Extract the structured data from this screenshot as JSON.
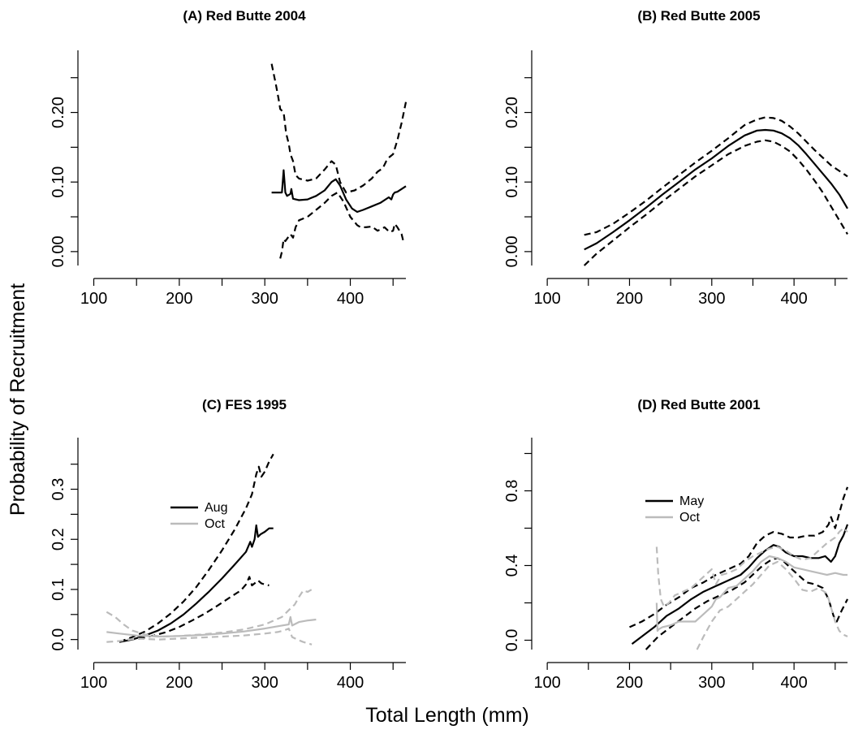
{
  "figure": {
    "ylabel": "Probability of Recruitment",
    "xlabel": "Total Length (mm)"
  },
  "colors": {
    "black": "#000000",
    "gray": "#bbbbbb"
  },
  "chart_data": [
    {
      "type": "line",
      "title": "(A) Red Butte 2004",
      "xlim": [
        90,
        465
      ],
      "xticks": [
        100,
        200,
        300,
        400
      ],
      "ylim": [
        -0.02,
        0.28
      ],
      "yticks": [
        0.0,
        0.1,
        0.2
      ],
      "yticklabels": [
        "0.00",
        "0.10",
        "0.20"
      ],
      "legend": [],
      "series": [
        {
          "color": "black",
          "dash": false,
          "x": [
            308,
            320,
            322,
            324,
            326,
            330,
            331,
            333,
            340,
            350,
            360,
            370,
            378,
            383,
            388,
            395,
            402,
            408,
            415,
            425,
            435,
            445,
            448,
            450,
            452,
            455,
            460,
            465
          ],
          "y": [
            0.085,
            0.085,
            0.117,
            0.085,
            0.08,
            0.083,
            0.09,
            0.076,
            0.074,
            0.075,
            0.08,
            0.088,
            0.1,
            0.104,
            0.095,
            0.075,
            0.062,
            0.057,
            0.06,
            0.065,
            0.07,
            0.078,
            0.075,
            0.082,
            0.085,
            0.086,
            0.09,
            0.094
          ]
        },
        {
          "color": "black",
          "dash": true,
          "x": [
            308,
            313,
            316,
            318,
            322,
            325,
            328,
            330,
            333,
            336,
            340,
            350,
            360,
            370,
            378,
            383,
            388,
            395,
            405,
            415,
            425,
            432,
            438,
            442,
            445,
            450,
            455,
            460,
            465
          ],
          "y": [
            0.27,
            0.24,
            0.22,
            0.205,
            0.2,
            0.17,
            0.155,
            0.14,
            0.13,
            0.11,
            0.105,
            0.102,
            0.105,
            0.118,
            0.13,
            0.125,
            0.1,
            0.085,
            0.088,
            0.095,
            0.105,
            0.115,
            0.12,
            0.13,
            0.135,
            0.14,
            0.16,
            0.185,
            0.215
          ]
        },
        {
          "color": "black",
          "dash": true,
          "x": [
            318,
            320,
            322,
            324,
            327,
            330,
            333,
            336,
            340,
            350,
            360,
            370,
            378,
            385,
            392,
            400,
            408,
            412,
            418,
            425,
            432,
            440,
            446,
            450,
            452,
            455,
            460,
            462
          ],
          "y": [
            -0.01,
            0.0,
            0.018,
            0.015,
            0.02,
            0.025,
            0.02,
            0.035,
            0.045,
            0.05,
            0.06,
            0.07,
            0.08,
            0.085,
            0.072,
            0.05,
            0.038,
            0.035,
            0.035,
            0.036,
            0.03,
            0.035,
            0.028,
            0.03,
            0.04,
            0.035,
            0.025,
            0.015
          ]
        }
      ]
    },
    {
      "type": "line",
      "title": "(B) Red Butte 2005",
      "xlim": [
        90,
        465
      ],
      "xticks": [
        100,
        200,
        300,
        400
      ],
      "ylim": [
        -0.02,
        0.28
      ],
      "yticks": [
        0.0,
        0.1,
        0.2
      ],
      "yticklabels": [
        "0.00",
        "0.10",
        "0.20"
      ],
      "legend": [],
      "series": [
        {
          "color": "black",
          "dash": false,
          "x": [
            145,
            160,
            180,
            200,
            220,
            240,
            260,
            280,
            300,
            320,
            340,
            355,
            365,
            375,
            385,
            395,
            405,
            415,
            425,
            435,
            445,
            455,
            465
          ],
          "y": [
            0.003,
            0.012,
            0.028,
            0.045,
            0.063,
            0.082,
            0.1,
            0.118,
            0.134,
            0.152,
            0.167,
            0.174,
            0.175,
            0.174,
            0.17,
            0.163,
            0.153,
            0.14,
            0.126,
            0.112,
            0.098,
            0.082,
            0.062
          ]
        },
        {
          "color": "black",
          "dash": true,
          "x": [
            145,
            160,
            180,
            200,
            220,
            240,
            260,
            280,
            300,
            320,
            340,
            355,
            365,
            375,
            385,
            395,
            405,
            415,
            425,
            435,
            445,
            455,
            465
          ],
          "y": [
            0.024,
            0.028,
            0.04,
            0.056,
            0.073,
            0.092,
            0.11,
            0.128,
            0.145,
            0.163,
            0.182,
            0.19,
            0.193,
            0.192,
            0.188,
            0.18,
            0.17,
            0.158,
            0.146,
            0.135,
            0.124,
            0.116,
            0.108
          ]
        },
        {
          "color": "black",
          "dash": true,
          "x": [
            145,
            160,
            180,
            200,
            220,
            240,
            260,
            280,
            300,
            320,
            340,
            355,
            365,
            375,
            385,
            395,
            405,
            415,
            425,
            435,
            445,
            455,
            465
          ],
          "y": [
            -0.02,
            -0.003,
            0.016,
            0.035,
            0.053,
            0.072,
            0.09,
            0.108,
            0.124,
            0.14,
            0.152,
            0.158,
            0.16,
            0.158,
            0.152,
            0.144,
            0.132,
            0.118,
            0.102,
            0.085,
            0.065,
            0.045,
            0.025
          ]
        }
      ]
    },
    {
      "type": "line",
      "title": "(C) FES 1995",
      "xlim": [
        90,
        465
      ],
      "xticks": [
        100,
        200,
        300,
        400
      ],
      "ylim": [
        -0.02,
        0.39
      ],
      "yticks": [
        0.0,
        0.1,
        0.2,
        0.3
      ],
      "yticklabels": [
        "0.0",
        "0.1",
        "0.2",
        "0.3"
      ],
      "legend": [
        {
          "label": "Aug",
          "color": "black"
        },
        {
          "label": "Oct",
          "color": "gray"
        }
      ],
      "series": [
        {
          "color": "black",
          "dash": false,
          "x": [
            130,
            145,
            160,
            175,
            190,
            205,
            220,
            235,
            250,
            265,
            278,
            283,
            285,
            288,
            290,
            292,
            295,
            300,
            305,
            310
          ],
          "y": [
            -0.005,
            0.0,
            0.008,
            0.018,
            0.032,
            0.05,
            0.072,
            0.096,
            0.122,
            0.15,
            0.175,
            0.195,
            0.185,
            0.2,
            0.228,
            0.205,
            0.21,
            0.215,
            0.222,
            0.222
          ]
        },
        {
          "color": "black",
          "dash": true,
          "x": [
            130,
            145,
            160,
            175,
            190,
            205,
            220,
            235,
            250,
            265,
            278,
            285,
            290,
            293,
            296,
            300,
            305,
            310
          ],
          "y": [
            -0.005,
            0.005,
            0.016,
            0.032,
            0.052,
            0.076,
            0.105,
            0.14,
            0.178,
            0.22,
            0.262,
            0.29,
            0.33,
            0.345,
            0.325,
            0.335,
            0.355,
            0.37
          ]
        },
        {
          "color": "black",
          "dash": true,
          "x": [
            140,
            155,
            170,
            185,
            200,
            215,
            230,
            245,
            260,
            272,
            278,
            282,
            285,
            288,
            292,
            296,
            300,
            305
          ],
          "y": [
            0.0,
            0.002,
            0.008,
            0.015,
            0.025,
            0.038,
            0.052,
            0.068,
            0.085,
            0.098,
            0.11,
            0.125,
            0.108,
            0.112,
            0.118,
            0.112,
            0.11,
            0.108
          ]
        },
        {
          "color": "gray",
          "dash": false,
          "x": [
            115,
            130,
            150,
            175,
            200,
            225,
            250,
            275,
            300,
            320,
            328,
            330,
            332,
            340,
            350,
            360
          ],
          "y": [
            0.015,
            0.012,
            0.008,
            0.006,
            0.007,
            0.009,
            0.012,
            0.016,
            0.022,
            0.028,
            0.03,
            0.045,
            0.028,
            0.035,
            0.038,
            0.04
          ]
        },
        {
          "color": "gray",
          "dash": true,
          "x": [
            115,
            125,
            135,
            145,
            160,
            180,
            200,
            225,
            250,
            275,
            300,
            320,
            330,
            335,
            340,
            345,
            350,
            355
          ],
          "y": [
            0.055,
            0.045,
            0.03,
            0.018,
            0.01,
            0.006,
            0.007,
            0.01,
            0.014,
            0.02,
            0.03,
            0.045,
            0.062,
            0.07,
            0.085,
            0.098,
            0.095,
            0.1
          ]
        },
        {
          "color": "gray",
          "dash": true,
          "x": [
            115,
            130,
            150,
            175,
            200,
            225,
            250,
            275,
            300,
            315,
            322,
            328,
            332,
            338,
            345,
            355
          ],
          "y": [
            -0.005,
            -0.003,
            0.002,
            0.0,
            0.002,
            0.004,
            0.006,
            0.008,
            0.012,
            0.015,
            0.018,
            0.022,
            0.005,
            0.0,
            -0.005,
            -0.01
          ]
        }
      ]
    },
    {
      "type": "line",
      "title": "(D) Red Butte 2001",
      "xlim": [
        90,
        465
      ],
      "xticks": [
        100,
        200,
        300,
        400
      ],
      "ylim": [
        -0.05,
        1.05
      ],
      "yticks": [
        0.0,
        0.4,
        0.8
      ],
      "yticklabels": [
        "0.0",
        "0.4",
        "0.8"
      ],
      "legend": [
        {
          "label": "May",
          "color": "black"
        },
        {
          "label": "Oct",
          "color": "gray"
        }
      ],
      "series": [
        {
          "color": "black",
          "dash": false,
          "x": [
            203,
            215,
            230,
            245,
            260,
            275,
            290,
            305,
            320,
            335,
            345,
            355,
            365,
            375,
            382,
            390,
            400,
            410,
            420,
            430,
            438,
            445,
            450,
            455,
            460,
            465
          ],
          "y": [
            -0.02,
            0.02,
            0.07,
            0.13,
            0.17,
            0.22,
            0.26,
            0.29,
            0.32,
            0.35,
            0.39,
            0.44,
            0.48,
            0.51,
            0.5,
            0.47,
            0.45,
            0.45,
            0.44,
            0.44,
            0.45,
            0.42,
            0.45,
            0.52,
            0.56,
            0.62
          ]
        },
        {
          "color": "black",
          "dash": true,
          "x": [
            200,
            215,
            230,
            245,
            260,
            275,
            290,
            305,
            320,
            335,
            345,
            355,
            365,
            375,
            385,
            395,
            405,
            415,
            425,
            435,
            442,
            445,
            450,
            455,
            460,
            465
          ],
          "y": [
            0.07,
            0.1,
            0.14,
            0.19,
            0.23,
            0.28,
            0.31,
            0.35,
            0.38,
            0.41,
            0.45,
            0.52,
            0.56,
            0.58,
            0.57,
            0.55,
            0.55,
            0.56,
            0.56,
            0.58,
            0.62,
            0.66,
            0.6,
            0.68,
            0.76,
            0.82
          ]
        },
        {
          "color": "black",
          "dash": true,
          "x": [
            220,
            235,
            250,
            265,
            280,
            295,
            310,
            325,
            340,
            352,
            362,
            372,
            380,
            388,
            395,
            405,
            415,
            425,
            435,
            442,
            448,
            452,
            458,
            465
          ],
          "y": [
            -0.05,
            0.02,
            0.07,
            0.12,
            0.17,
            0.21,
            0.24,
            0.27,
            0.31,
            0.36,
            0.4,
            0.43,
            0.44,
            0.42,
            0.39,
            0.35,
            0.31,
            0.3,
            0.28,
            0.22,
            0.13,
            0.1,
            0.16,
            0.22
          ]
        },
        {
          "color": "gray",
          "dash": false,
          "x": [
            233,
            234,
            236,
            240,
            250,
            260,
            270,
            280,
            290,
            300,
            305,
            310,
            320,
            330,
            340,
            350,
            360,
            370,
            380,
            390,
            400,
            410,
            420,
            430,
            440,
            450,
            460,
            465
          ],
          "y": [
            0.2,
            0.05,
            0.06,
            0.07,
            0.08,
            0.1,
            0.1,
            0.1,
            0.14,
            0.18,
            0.22,
            0.23,
            0.28,
            0.29,
            0.33,
            0.37,
            0.42,
            0.45,
            0.44,
            0.42,
            0.39,
            0.38,
            0.37,
            0.36,
            0.35,
            0.36,
            0.35,
            0.35
          ]
        },
        {
          "color": "gray",
          "dash": true,
          "x": [
            233,
            235,
            238,
            242,
            248,
            255,
            265,
            275,
            285,
            295,
            300,
            305,
            312,
            320,
            330,
            340,
            350,
            360,
            370,
            380,
            390,
            400,
            410,
            420,
            430,
            440,
            450,
            455,
            460,
            465
          ],
          "y": [
            0.5,
            0.35,
            0.22,
            0.18,
            0.2,
            0.24,
            0.26,
            0.28,
            0.32,
            0.36,
            0.38,
            0.3,
            0.35,
            0.36,
            0.38,
            0.42,
            0.45,
            0.47,
            0.49,
            0.5,
            0.48,
            0.45,
            0.43,
            0.44,
            0.48,
            0.52,
            0.55,
            0.58,
            0.6,
            0.58
          ]
        },
        {
          "color": "gray",
          "dash": true,
          "x": [
            282,
            290,
            300,
            310,
            320,
            330,
            340,
            350,
            360,
            370,
            380,
            390,
            400,
            410,
            420,
            430,
            440,
            450,
            455,
            460,
            465
          ],
          "y": [
            -0.05,
            0.02,
            0.1,
            0.16,
            0.18,
            0.22,
            0.26,
            0.3,
            0.35,
            0.4,
            0.42,
            0.38,
            0.33,
            0.27,
            0.26,
            0.28,
            0.25,
            0.1,
            0.05,
            0.03,
            0.02
          ]
        }
      ]
    }
  ]
}
